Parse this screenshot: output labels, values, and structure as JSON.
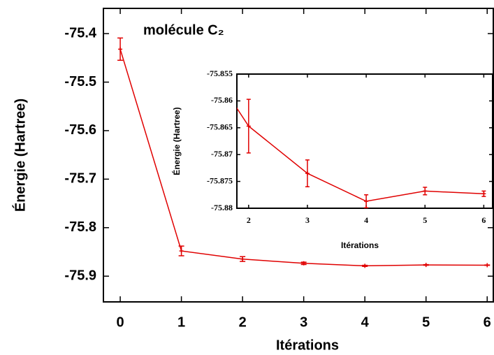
{
  "chart_data": [
    {
      "type": "line",
      "title": "molécule C₂",
      "x_label": "Itérations",
      "y_label": "Énergie (Hartree)",
      "color": "#e00000",
      "x": [
        0,
        1,
        2,
        3,
        4,
        5,
        6
      ],
      "values": [
        -75.432,
        -75.848,
        -75.8647,
        -75.8735,
        -75.8787,
        -75.8768,
        -75.8773
      ],
      "errors": [
        0.023,
        0.01,
        0.005,
        0.0025,
        0.0012,
        0.0007,
        0.0005
      ],
      "xlim": [
        -0.275,
        6.1
      ],
      "ylim": [
        -75.953,
        -75.348
      ],
      "xticks": [
        0,
        1,
        2,
        3,
        4,
        5,
        6
      ],
      "yticks": [
        -75.9,
        -75.8,
        -75.7,
        -75.6,
        -75.5,
        -75.4
      ]
    },
    {
      "type": "line",
      "x_label": "Itérations",
      "y_label": "Énergie (Hartree)",
      "color": "#e00000",
      "x": [
        1,
        2,
        3,
        4,
        5,
        6
      ],
      "values": [
        -75.848,
        -75.8647,
        -75.8735,
        -75.8787,
        -75.8768,
        -75.8773
      ],
      "errors": [
        0.01,
        0.005,
        0.0025,
        0.0012,
        0.0007,
        0.0005
      ],
      "xlim": [
        1.8,
        6.15
      ],
      "ylim": [
        -75.88,
        -75.855
      ],
      "xticks": [
        2,
        3,
        4,
        5,
        6
      ],
      "yticks": [
        -75.88,
        -75.875,
        -75.87,
        -75.865,
        -75.86,
        -75.855
      ]
    }
  ]
}
